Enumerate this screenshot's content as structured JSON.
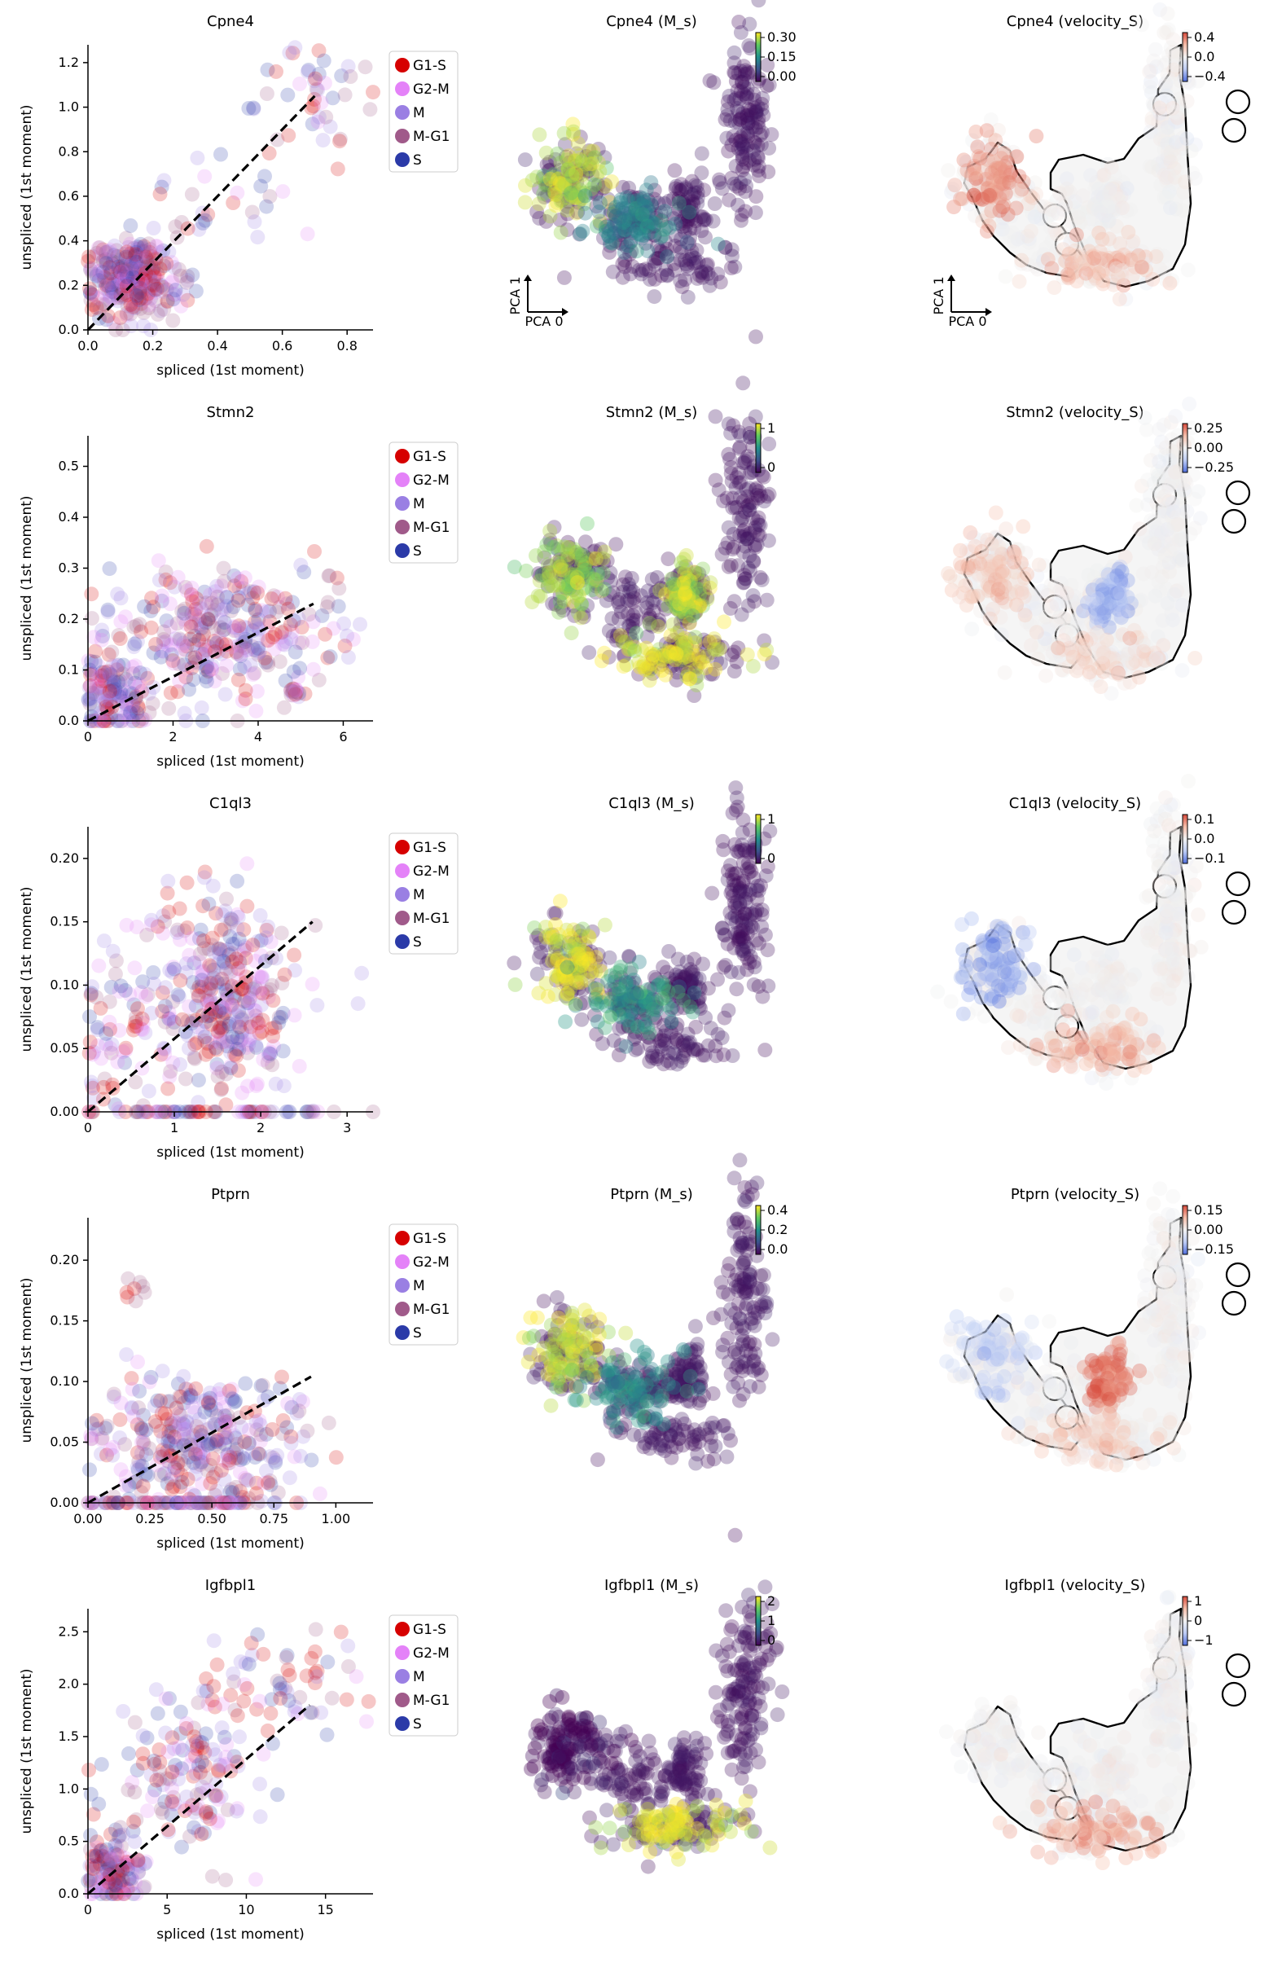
{
  "legend": {
    "labels": [
      "G1-S",
      "G2-M",
      "M",
      "M-G1",
      "S"
    ],
    "colors": [
      "#d60000",
      "#e482f8",
      "#9a7fe3",
      "#a05a8a",
      "#2b3aa8"
    ]
  },
  "scatter_common": {
    "xlabel": "spliced (1st moment)",
    "ylabel": "unspliced (1st moment)"
  },
  "embedding_common": {
    "axis_x": "PCA 0",
    "axis_y": "PCA 1"
  },
  "chart_data": [
    {
      "type": "scatter",
      "gene": "Cpne4",
      "title": "Cpne4",
      "xlabel": "spliced (1st moment)",
      "ylabel": "unspliced (1st moment)",
      "xlim": [
        0,
        0.88
      ],
      "ylim": [
        0,
        1.28
      ],
      "xticks": [
        "0.0",
        "0.2",
        "0.4",
        "0.6",
        "0.8"
      ],
      "xtick_values": [
        0,
        0.2,
        0.4,
        0.6,
        0.8
      ],
      "yticks": [
        "0.0",
        "0.2",
        "0.4",
        "0.6",
        "0.8",
        "1.0",
        "1.2"
      ],
      "ytick_values": [
        0,
        0.2,
        0.4,
        0.6,
        0.8,
        1.0,
        1.2
      ],
      "fit_line": {
        "x": [
          0,
          0.7
        ],
        "y": [
          0,
          1.05
        ]
      },
      "clusters": [
        {
          "x": 0.14,
          "y": 0.24,
          "sx": 0.07,
          "sy": 0.09,
          "n": 320
        },
        {
          "x": 0.7,
          "y": 1.05,
          "sx": 0.09,
          "sy": 0.14,
          "n": 45
        },
        {
          "x": 0.42,
          "y": 0.55,
          "sx": 0.12,
          "sy": 0.12,
          "n": 25
        }
      ]
    },
    {
      "type": "scatter",
      "gene": "Stmn2",
      "title": "Stmn2",
      "xlabel": "spliced (1st moment)",
      "ylabel": "unspliced (1st moment)",
      "xlim": [
        0,
        6.7
      ],
      "ylim": [
        0,
        0.56
      ],
      "xticks": [
        "0",
        "2",
        "4",
        "6"
      ],
      "xtick_values": [
        0,
        2,
        4,
        6
      ],
      "yticks": [
        "0.0",
        "0.1",
        "0.2",
        "0.3",
        "0.4",
        "0.5"
      ],
      "ytick_values": [
        0,
        0.1,
        0.2,
        0.3,
        0.4,
        0.5
      ],
      "fit_line": {
        "x": [
          0,
          5.3
        ],
        "y": [
          0,
          0.23
        ]
      },
      "clusters": [
        {
          "x": 0.6,
          "y": 0.05,
          "sx": 0.45,
          "sy": 0.04,
          "n": 140
        },
        {
          "x": 3.2,
          "y": 0.17,
          "sx": 1.3,
          "sy": 0.07,
          "n": 320
        },
        {
          "x": 4.9,
          "y": 0.055,
          "sx": 0.12,
          "sy": 0.005,
          "n": 15
        }
      ]
    },
    {
      "type": "scatter",
      "gene": "C1ql3",
      "title": "C1ql3",
      "xlabel": "spliced (1st moment)",
      "ylabel": "unspliced (1st moment)",
      "xlim": [
        0,
        3.3
      ],
      "ylim": [
        0,
        0.225
      ],
      "xticks": [
        "0",
        "1",
        "2",
        "3"
      ],
      "xtick_values": [
        0,
        1,
        2,
        3
      ],
      "yticks": [
        "0.00",
        "0.05",
        "0.10",
        "0.15",
        "0.20"
      ],
      "ytick_values": [
        0,
        0.05,
        0.1,
        0.15,
        0.2
      ],
      "fit_line": {
        "x": [
          0,
          2.6
        ],
        "y": [
          0,
          0.15
        ]
      },
      "clusters": [
        {
          "x": 1.6,
          "y": 0.09,
          "sx": 0.4,
          "sy": 0.04,
          "n": 340
        },
        {
          "x": 0.4,
          "y": 0.07,
          "sx": 0.35,
          "sy": 0.045,
          "n": 80
        },
        {
          "x": 1.5,
          "y": 0.0,
          "sx": 0.8,
          "sy": 0.0,
          "n": 60
        }
      ]
    },
    {
      "type": "scatter",
      "gene": "Ptprn",
      "title": "Ptprn",
      "xlabel": "spliced (1st moment)",
      "ylabel": "unspliced (1st moment)",
      "xlim": [
        0,
        1.15
      ],
      "ylim": [
        0,
        0.235
      ],
      "xticks": [
        "0.00",
        "0.25",
        "0.50",
        "0.75",
        "1.00"
      ],
      "xtick_values": [
        0,
        0.25,
        0.5,
        0.75,
        1.0
      ],
      "yticks": [
        "0.00",
        "0.05",
        "0.10",
        "0.15",
        "0.20"
      ],
      "ytick_values": [
        0,
        0.05,
        0.1,
        0.15,
        0.2
      ],
      "fit_line": {
        "x": [
          0,
          0.9
        ],
        "y": [
          0,
          0.104
        ]
      },
      "clusters": [
        {
          "x": 0.45,
          "y": 0.05,
          "sx": 0.22,
          "sy": 0.03,
          "n": 360
        },
        {
          "x": 0.35,
          "y": 0.0,
          "sx": 0.2,
          "sy": 0.0,
          "n": 60
        },
        {
          "x": 0.19,
          "y": 0.172,
          "sx": 0.02,
          "sy": 0.006,
          "n": 8
        }
      ]
    },
    {
      "type": "scatter",
      "gene": "Igfbpl1",
      "title": "Igfbpl1",
      "xlabel": "spliced (1st moment)",
      "ylabel": "unspliced (1st moment)",
      "xlim": [
        0,
        18
      ],
      "ylim": [
        0,
        2.72
      ],
      "xticks": [
        "0",
        "5",
        "10",
        "15"
      ],
      "xtick_values": [
        0,
        5,
        10,
        15
      ],
      "yticks": [
        "0.0",
        "0.5",
        "1.0",
        "1.5",
        "2.0",
        "2.5"
      ],
      "ytick_values": [
        0,
        0.5,
        1.0,
        1.5,
        2.0,
        2.5
      ],
      "fit_line": {
        "x": [
          0,
          14
        ],
        "y": [
          0,
          1.8
        ]
      },
      "clusters": [
        {
          "x": 1.5,
          "y": 0.2,
          "sx": 1.0,
          "sy": 0.18,
          "n": 140
        },
        {
          "x": 6.5,
          "y": 1.1,
          "sx": 2.6,
          "sy": 0.38,
          "n": 150
        },
        {
          "x": 12.5,
          "y": 2.0,
          "sx": 2.5,
          "sy": 0.3,
          "n": 60
        }
      ]
    },
    {
      "type": "scatter",
      "gene": "Cpne4",
      "title": "Cpne4 (M_s)",
      "color_map": "viridis",
      "colorbar_ticks": [
        "0.30",
        "0.15",
        "0.00"
      ],
      "axis_x": "PCA 0",
      "axis_y": "PCA 1",
      "highlight": [
        {
          "region": "left",
          "value": 0.9
        },
        {
          "region": "mid",
          "value": 0.45
        }
      ]
    },
    {
      "type": "scatter",
      "gene": "Stmn2",
      "title": "Stmn2 (M_s)",
      "color_map": "viridis",
      "colorbar_ticks": [
        "1",
        "0"
      ],
      "highlight": [
        {
          "region": "left",
          "value": 0.85
        },
        {
          "region": "bottom",
          "value": 0.95
        },
        {
          "region": "island",
          "value": 0.9
        }
      ]
    },
    {
      "type": "scatter",
      "gene": "C1ql3",
      "title": "C1ql3 (M_s)",
      "color_map": "viridis",
      "colorbar_ticks": [
        "1",
        "0"
      ],
      "highlight": [
        {
          "region": "left",
          "value": 0.95
        },
        {
          "region": "mid",
          "value": 0.55
        }
      ]
    },
    {
      "type": "scatter",
      "gene": "Ptprn",
      "title": "Ptprn (M_s)",
      "color_map": "viridis",
      "colorbar_ticks": [
        "0.4",
        "0.2",
        "0.0"
      ],
      "highlight": [
        {
          "region": "left",
          "value": 0.9
        },
        {
          "region": "mid",
          "value": 0.5
        }
      ]
    },
    {
      "type": "scatter",
      "gene": "Igfbpl1",
      "title": "Igfbpl1 (M_s)",
      "color_map": "viridis",
      "colorbar_ticks": [
        "2",
        "1",
        "0"
      ],
      "highlight": [
        {
          "region": "bottom",
          "value": 0.95
        },
        {
          "region": "left",
          "value": 0.0
        }
      ]
    },
    {
      "type": "scatter",
      "gene": "Cpne4",
      "title": "Cpne4 (velocity_S)",
      "color_map": "coolwarm",
      "colorbar_ticks": [
        "0.4",
        "0.0",
        "−0.4"
      ],
      "axis_x": "PCA 0",
      "axis_y": "PCA 1",
      "highlight": [
        {
          "region": "left",
          "value": 0.85
        },
        {
          "region": "bottom",
          "value": 0.7
        }
      ]
    },
    {
      "type": "scatter",
      "gene": "Stmn2",
      "title": "Stmn2 (velocity_S)",
      "color_map": "coolwarm",
      "colorbar_ticks": [
        "0.25",
        "0.00",
        "−0.25"
      ],
      "highlight": [
        {
          "region": "left",
          "value": 0.7
        },
        {
          "region": "island",
          "value": 0.2
        },
        {
          "region": "bottom",
          "value": 0.6
        }
      ]
    },
    {
      "type": "scatter",
      "gene": "C1ql3",
      "title": "C1ql3 (velocity_S)",
      "color_map": "coolwarm",
      "colorbar_ticks": [
        "0.1",
        "0.0",
        "−0.1"
      ],
      "highlight": [
        {
          "region": "left",
          "value": 0.15
        },
        {
          "region": "bottom",
          "value": 0.75
        }
      ]
    },
    {
      "type": "scatter",
      "gene": "Ptprn",
      "title": "Ptprn (velocity_S)",
      "color_map": "coolwarm",
      "colorbar_ticks": [
        "0.15",
        "0.00",
        "−0.15"
      ],
      "highlight": [
        {
          "region": "left",
          "value": 0.3
        },
        {
          "region": "island",
          "value": 0.9
        },
        {
          "region": "bottom",
          "value": 0.65
        }
      ]
    },
    {
      "type": "scatter",
      "gene": "Igfbpl1",
      "title": "Igfbpl1 (velocity_S)",
      "color_map": "coolwarm",
      "colorbar_ticks": [
        "1",
        "0",
        "−1"
      ],
      "highlight": [
        {
          "region": "bottom",
          "value": 0.8
        }
      ]
    }
  ]
}
